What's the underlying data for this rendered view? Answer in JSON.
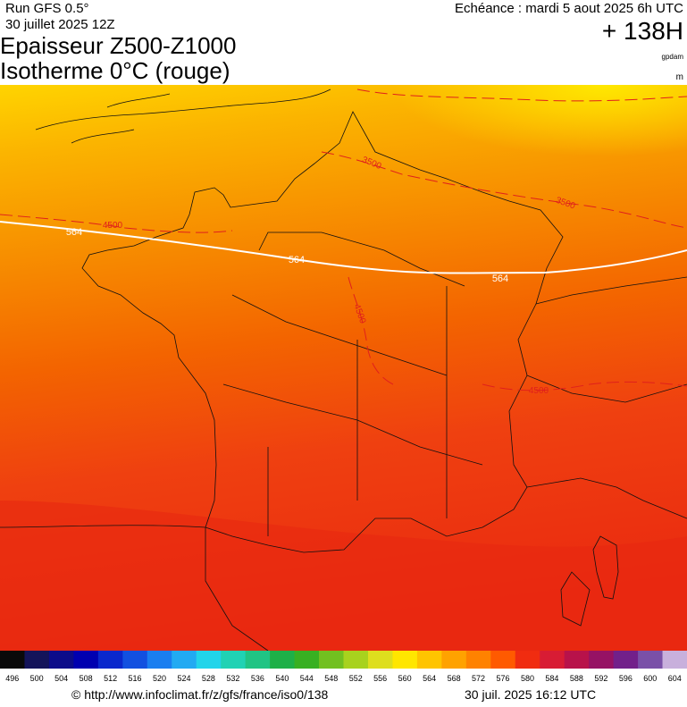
{
  "header": {
    "run": "Run GFS 0.5°",
    "date": "30 juillet 2025 12Z",
    "title_line1": "Epaisseur Z500-Z1000",
    "title_line2": "Isotherme 0°C (rouge)",
    "echeance": "Echéance : mardi 5 aout 2025 6h UTC",
    "lead": "+ 138H",
    "unit1": "gpdam",
    "unit2": "m"
  },
  "map": {
    "thickness_labels": [
      "564",
      "564",
      "564"
    ],
    "isotherm_labels": [
      "4500",
      "3500",
      "4500",
      "3500",
      "4500"
    ]
  },
  "legend": {
    "values": [
      496,
      500,
      504,
      508,
      512,
      516,
      520,
      524,
      528,
      532,
      536,
      540,
      544,
      548,
      552,
      556,
      560,
      564,
      568,
      572,
      576,
      580,
      584,
      588,
      592,
      596,
      600,
      604
    ],
    "colors": [
      "#0a0a0a",
      "#14145a",
      "#0c0c8a",
      "#0000b0",
      "#0a28cc",
      "#1250e0",
      "#1a7ef0",
      "#22aaf2",
      "#22d4ea",
      "#20d2b4",
      "#20c484",
      "#1eb048",
      "#38b022",
      "#72c020",
      "#a8d21e",
      "#dede1e",
      "#ffe600",
      "#ffc400",
      "#ffa200",
      "#ff8200",
      "#ff5a00",
      "#f02c10",
      "#d81c34",
      "#b8124a",
      "#961264",
      "#72208a",
      "#7a50a8",
      "#c8b0dc"
    ]
  },
  "footer": {
    "url": "© http://www.infoclimat.fr/z/gfs/france/iso0/138",
    "generated": "30 juil. 2025 16:12 UTC"
  }
}
